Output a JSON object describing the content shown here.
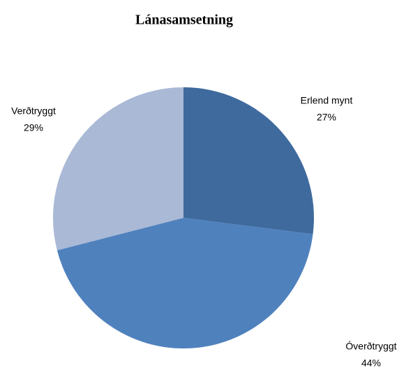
{
  "chart_data": {
    "type": "pie",
    "title": "Lánasamsetning",
    "categories": [
      "Erlend mynt",
      "Óverðtryggt",
      "Verðtryggt"
    ],
    "values": [
      27,
      44,
      29
    ],
    "value_labels": [
      "27%",
      "44%",
      "29%"
    ],
    "colors": [
      "#3f6a9e",
      "#4f81bd",
      "#a9b9d6"
    ]
  }
}
